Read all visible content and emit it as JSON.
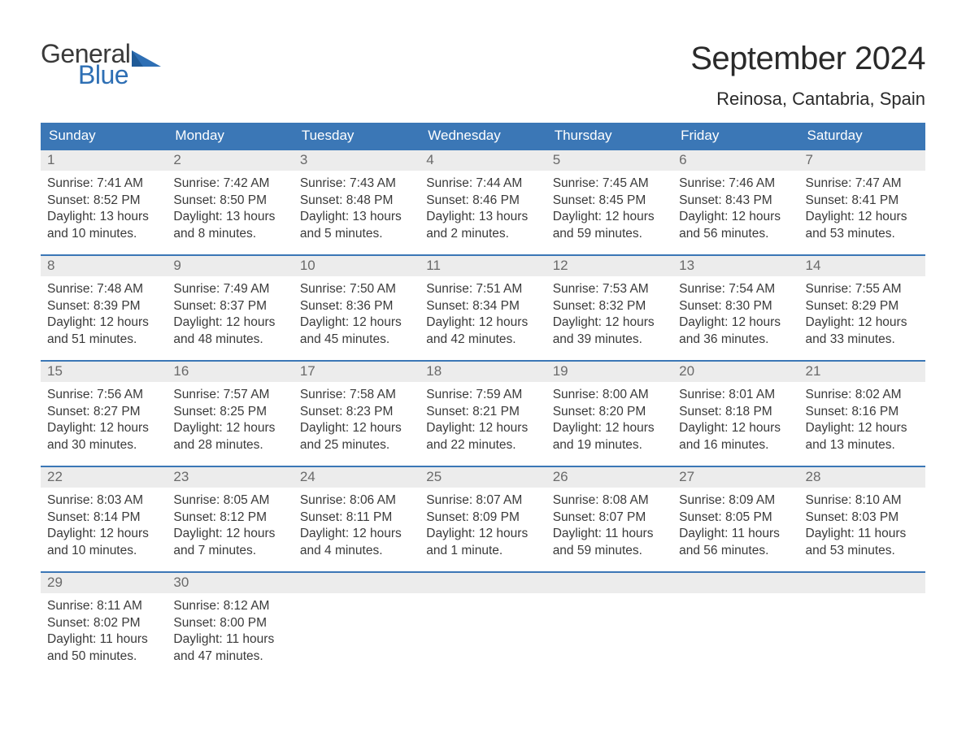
{
  "brand": {
    "general": "General",
    "blue": "Blue"
  },
  "colors": {
    "brand_blue": "#2e6fb4",
    "header_blue": "#3b77b6",
    "daynum_bg": "#ececec",
    "text": "#3a3a3a",
    "border_blue": "#3b77b6",
    "background": "#ffffff"
  },
  "typography": {
    "title_fontsize": 40,
    "location_fontsize": 22,
    "dow_fontsize": 17,
    "body_fontsize": 15.5
  },
  "title": "September 2024",
  "location": "Reinosa, Cantabria, Spain",
  "days_of_week": [
    "Sunday",
    "Monday",
    "Tuesday",
    "Wednesday",
    "Thursday",
    "Friday",
    "Saturday"
  ],
  "weeks": [
    [
      {
        "n": "1",
        "sunrise": "Sunrise: 7:41 AM",
        "sunset": "Sunset: 8:52 PM",
        "d1": "Daylight: 13 hours",
        "d2": "and 10 minutes."
      },
      {
        "n": "2",
        "sunrise": "Sunrise: 7:42 AM",
        "sunset": "Sunset: 8:50 PM",
        "d1": "Daylight: 13 hours",
        "d2": "and 8 minutes."
      },
      {
        "n": "3",
        "sunrise": "Sunrise: 7:43 AM",
        "sunset": "Sunset: 8:48 PM",
        "d1": "Daylight: 13 hours",
        "d2": "and 5 minutes."
      },
      {
        "n": "4",
        "sunrise": "Sunrise: 7:44 AM",
        "sunset": "Sunset: 8:46 PM",
        "d1": "Daylight: 13 hours",
        "d2": "and 2 minutes."
      },
      {
        "n": "5",
        "sunrise": "Sunrise: 7:45 AM",
        "sunset": "Sunset: 8:45 PM",
        "d1": "Daylight: 12 hours",
        "d2": "and 59 minutes."
      },
      {
        "n": "6",
        "sunrise": "Sunrise: 7:46 AM",
        "sunset": "Sunset: 8:43 PM",
        "d1": "Daylight: 12 hours",
        "d2": "and 56 minutes."
      },
      {
        "n": "7",
        "sunrise": "Sunrise: 7:47 AM",
        "sunset": "Sunset: 8:41 PM",
        "d1": "Daylight: 12 hours",
        "d2": "and 53 minutes."
      }
    ],
    [
      {
        "n": "8",
        "sunrise": "Sunrise: 7:48 AM",
        "sunset": "Sunset: 8:39 PM",
        "d1": "Daylight: 12 hours",
        "d2": "and 51 minutes."
      },
      {
        "n": "9",
        "sunrise": "Sunrise: 7:49 AM",
        "sunset": "Sunset: 8:37 PM",
        "d1": "Daylight: 12 hours",
        "d2": "and 48 minutes."
      },
      {
        "n": "10",
        "sunrise": "Sunrise: 7:50 AM",
        "sunset": "Sunset: 8:36 PM",
        "d1": "Daylight: 12 hours",
        "d2": "and 45 minutes."
      },
      {
        "n": "11",
        "sunrise": "Sunrise: 7:51 AM",
        "sunset": "Sunset: 8:34 PM",
        "d1": "Daylight: 12 hours",
        "d2": "and 42 minutes."
      },
      {
        "n": "12",
        "sunrise": "Sunrise: 7:53 AM",
        "sunset": "Sunset: 8:32 PM",
        "d1": "Daylight: 12 hours",
        "d2": "and 39 minutes."
      },
      {
        "n": "13",
        "sunrise": "Sunrise: 7:54 AM",
        "sunset": "Sunset: 8:30 PM",
        "d1": "Daylight: 12 hours",
        "d2": "and 36 minutes."
      },
      {
        "n": "14",
        "sunrise": "Sunrise: 7:55 AM",
        "sunset": "Sunset: 8:29 PM",
        "d1": "Daylight: 12 hours",
        "d2": "and 33 minutes."
      }
    ],
    [
      {
        "n": "15",
        "sunrise": "Sunrise: 7:56 AM",
        "sunset": "Sunset: 8:27 PM",
        "d1": "Daylight: 12 hours",
        "d2": "and 30 minutes."
      },
      {
        "n": "16",
        "sunrise": "Sunrise: 7:57 AM",
        "sunset": "Sunset: 8:25 PM",
        "d1": "Daylight: 12 hours",
        "d2": "and 28 minutes."
      },
      {
        "n": "17",
        "sunrise": "Sunrise: 7:58 AM",
        "sunset": "Sunset: 8:23 PM",
        "d1": "Daylight: 12 hours",
        "d2": "and 25 minutes."
      },
      {
        "n": "18",
        "sunrise": "Sunrise: 7:59 AM",
        "sunset": "Sunset: 8:21 PM",
        "d1": "Daylight: 12 hours",
        "d2": "and 22 minutes."
      },
      {
        "n": "19",
        "sunrise": "Sunrise: 8:00 AM",
        "sunset": "Sunset: 8:20 PM",
        "d1": "Daylight: 12 hours",
        "d2": "and 19 minutes."
      },
      {
        "n": "20",
        "sunrise": "Sunrise: 8:01 AM",
        "sunset": "Sunset: 8:18 PM",
        "d1": "Daylight: 12 hours",
        "d2": "and 16 minutes."
      },
      {
        "n": "21",
        "sunrise": "Sunrise: 8:02 AM",
        "sunset": "Sunset: 8:16 PM",
        "d1": "Daylight: 12 hours",
        "d2": "and 13 minutes."
      }
    ],
    [
      {
        "n": "22",
        "sunrise": "Sunrise: 8:03 AM",
        "sunset": "Sunset: 8:14 PM",
        "d1": "Daylight: 12 hours",
        "d2": "and 10 minutes."
      },
      {
        "n": "23",
        "sunrise": "Sunrise: 8:05 AM",
        "sunset": "Sunset: 8:12 PM",
        "d1": "Daylight: 12 hours",
        "d2": "and 7 minutes."
      },
      {
        "n": "24",
        "sunrise": "Sunrise: 8:06 AM",
        "sunset": "Sunset: 8:11 PM",
        "d1": "Daylight: 12 hours",
        "d2": "and 4 minutes."
      },
      {
        "n": "25",
        "sunrise": "Sunrise: 8:07 AM",
        "sunset": "Sunset: 8:09 PM",
        "d1": "Daylight: 12 hours",
        "d2": "and 1 minute."
      },
      {
        "n": "26",
        "sunrise": "Sunrise: 8:08 AM",
        "sunset": "Sunset: 8:07 PM",
        "d1": "Daylight: 11 hours",
        "d2": "and 59 minutes."
      },
      {
        "n": "27",
        "sunrise": "Sunrise: 8:09 AM",
        "sunset": "Sunset: 8:05 PM",
        "d1": "Daylight: 11 hours",
        "d2": "and 56 minutes."
      },
      {
        "n": "28",
        "sunrise": "Sunrise: 8:10 AM",
        "sunset": "Sunset: 8:03 PM",
        "d1": "Daylight: 11 hours",
        "d2": "and 53 minutes."
      }
    ],
    [
      {
        "n": "29",
        "sunrise": "Sunrise: 8:11 AM",
        "sunset": "Sunset: 8:02 PM",
        "d1": "Daylight: 11 hours",
        "d2": "and 50 minutes."
      },
      {
        "n": "30",
        "sunrise": "Sunrise: 8:12 AM",
        "sunset": "Sunset: 8:00 PM",
        "d1": "Daylight: 11 hours",
        "d2": "and 47 minutes."
      },
      {
        "empty": true
      },
      {
        "empty": true
      },
      {
        "empty": true
      },
      {
        "empty": true
      },
      {
        "empty": true
      }
    ]
  ]
}
